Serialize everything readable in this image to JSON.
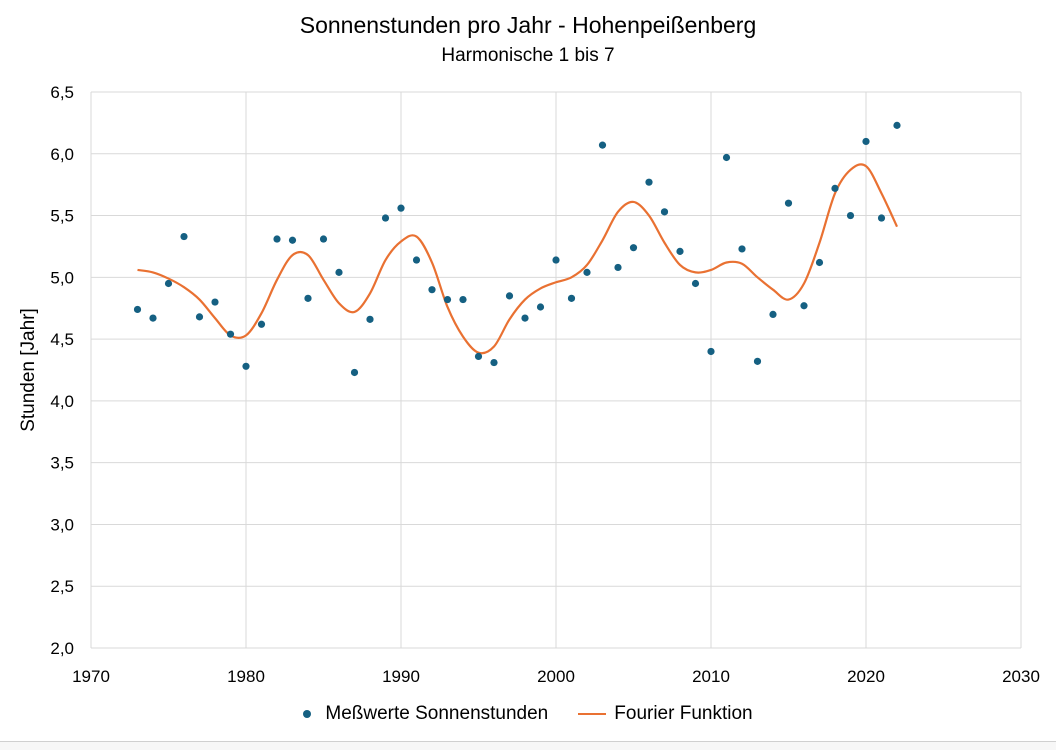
{
  "chart_data": {
    "type": "scatter",
    "title": "Sonnenstunden pro Jahr - Hohenpeißenberg",
    "subtitle": "Harmonische 1 bis 7",
    "xlabel": "",
    "ylabel": "Stunden [Jahr]",
    "xlim": [
      1970,
      2030
    ],
    "ylim": [
      2.0,
      6.5
    ],
    "x_ticks": [
      "1970",
      "1980",
      "1990",
      "2000",
      "2010",
      "2020",
      "2030"
    ],
    "y_ticks": [
      "2,0",
      "2,5",
      "3,0",
      "3,5",
      "4,0",
      "4,5",
      "5,0",
      "5,5",
      "6,0",
      "6,5"
    ],
    "grid": true,
    "legend": "bottom",
    "colors": {
      "points": "#156082",
      "line": "#E97132",
      "grid": "#d9d9d9"
    },
    "series": [
      {
        "name": "Meßwerte Sonnenstunden",
        "type": "scatter",
        "x": [
          1973,
          1974,
          1975,
          1976,
          1977,
          1978,
          1979,
          1980,
          1981,
          1982,
          1983,
          1984,
          1985,
          1986,
          1987,
          1988,
          1989,
          1990,
          1991,
          1992,
          1993,
          1994,
          1995,
          1996,
          1997,
          1998,
          1999,
          2000,
          2001,
          2002,
          2003,
          2004,
          2005,
          2006,
          2007,
          2008,
          2009,
          2010,
          2011,
          2012,
          2013,
          2014,
          2015,
          2016,
          2017,
          2018,
          2019,
          2020,
          2021,
          2022
        ],
        "y": [
          4.74,
          4.67,
          4.95,
          5.33,
          4.68,
          4.8,
          4.54,
          4.28,
          4.62,
          5.31,
          5.3,
          4.83,
          5.31,
          5.04,
          4.23,
          4.66,
          5.48,
          5.56,
          5.14,
          4.9,
          4.82,
          4.82,
          4.36,
          4.31,
          4.85,
          4.67,
          4.76,
          5.14,
          4.83,
          5.04,
          6.07,
          5.08,
          5.24,
          5.77,
          5.53,
          5.21,
          4.95,
          4.4,
          5.97,
          5.23,
          4.32,
          4.7,
          5.6,
          4.77,
          5.12,
          5.72,
          5.5,
          6.1,
          5.48,
          6.23
        ]
      },
      {
        "name": "Fourier Funktion",
        "type": "line",
        "x": [
          1973,
          1974,
          1975,
          1976,
          1977,
          1978,
          1979,
          1980,
          1981,
          1982,
          1983,
          1984,
          1985,
          1986,
          1987,
          1988,
          1989,
          1990,
          1991,
          1992,
          1993,
          1994,
          1995,
          1996,
          1997,
          1998,
          1999,
          2000,
          2001,
          2002,
          2003,
          2004,
          2005,
          2006,
          2007,
          2008,
          2009,
          2010,
          2011,
          2012,
          2013,
          2014,
          2015,
          2016,
          2017,
          2018,
          2019,
          2020,
          2021,
          2022
        ],
        "y": [
          5.06,
          5.04,
          4.99,
          4.92,
          4.82,
          4.67,
          4.53,
          4.53,
          4.71,
          4.98,
          5.18,
          5.18,
          4.98,
          4.79,
          4.72,
          4.87,
          5.14,
          5.29,
          5.33,
          5.12,
          4.76,
          4.52,
          4.39,
          4.44,
          4.66,
          4.82,
          4.91,
          4.96,
          5.0,
          5.1,
          5.3,
          5.53,
          5.61,
          5.5,
          5.28,
          5.1,
          5.04,
          5.06,
          5.12,
          5.11,
          5.0,
          4.9,
          4.82,
          4.95,
          5.28,
          5.68,
          5.87,
          5.9,
          5.68,
          5.41
        ]
      }
    ]
  }
}
